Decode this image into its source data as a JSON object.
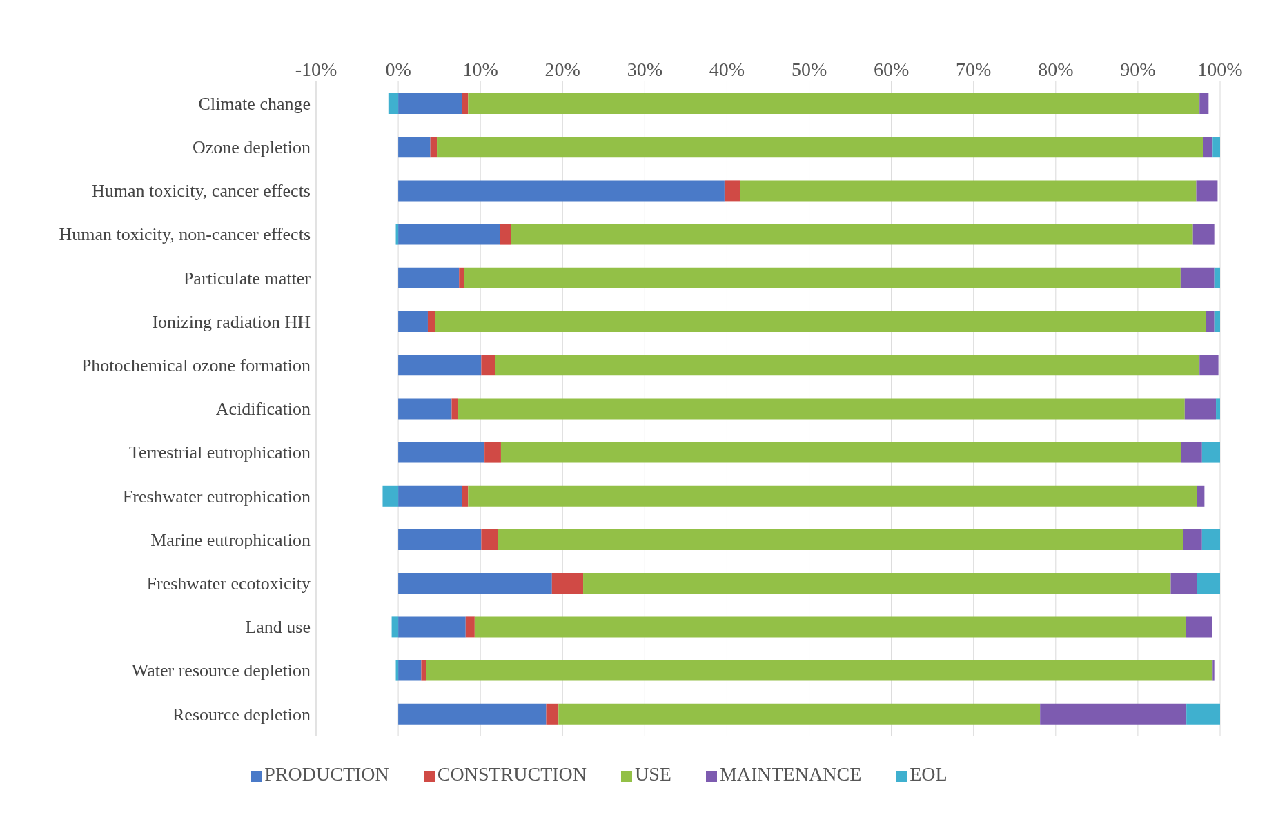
{
  "chart_data": {
    "type": "bar",
    "orientation": "horizontal",
    "stacked": true,
    "categories": [
      "Climate change",
      "Ozone depletion",
      "Human toxicity, cancer effects",
      "Human toxicity, non-cancer effects",
      "Particulate matter",
      "Ionizing radiation HH",
      "Photochemical ozone formation",
      "Acidification",
      "Terrestrial eutrophication",
      "Freshwater eutrophication",
      "Marine eutrophication",
      "Freshwater ecotoxicity",
      "Land use",
      "Water resource depletion",
      "Resource depletion"
    ],
    "series": [
      {
        "name": "PRODUCTION",
        "color": "#4a7ac8",
        "values": [
          7.8,
          3.9,
          39.7,
          12.4,
          7.4,
          3.6,
          10.1,
          6.5,
          10.5,
          7.8,
          10.1,
          18.7,
          8.2,
          2.8,
          18.0
        ]
      },
      {
        "name": "CONSTRUCTION",
        "color": "#d04a45",
        "values": [
          0.7,
          0.8,
          1.9,
          1.3,
          0.6,
          0.9,
          1.7,
          0.8,
          2.0,
          0.7,
          2.0,
          3.8,
          1.1,
          0.6,
          1.5
        ]
      },
      {
        "name": "USE",
        "color": "#93c047",
        "values": [
          89.0,
          93.2,
          55.5,
          83.0,
          87.2,
          93.8,
          85.7,
          88.4,
          82.8,
          88.7,
          83.4,
          71.5,
          86.5,
          95.7,
          58.6
        ]
      },
      {
        "name": "MAINTENANCE",
        "color": "#7d5bb0",
        "values": [
          1.1,
          1.2,
          2.6,
          2.6,
          4.1,
          1.0,
          2.3,
          3.8,
          2.5,
          0.9,
          2.3,
          3.2,
          3.2,
          0.2,
          17.8
        ]
      },
      {
        "name": "EOL",
        "color": "#3fb0cf",
        "values": [
          -1.2,
          0.9,
          null,
          -0.3,
          0.7,
          0.7,
          null,
          0.5,
          2.2,
          -1.9,
          2.2,
          2.8,
          -0.8,
          -0.3,
          4.1
        ]
      }
    ],
    "xlim": [
      -10,
      100
    ],
    "xticks": [
      {
        "value": -10,
        "label": "-10%"
      },
      {
        "value": 0,
        "label": "0%"
      },
      {
        "value": 10,
        "label": "10%"
      },
      {
        "value": 20,
        "label": "20%"
      },
      {
        "value": 30,
        "label": "30%"
      },
      {
        "value": 40,
        "label": "40%"
      },
      {
        "value": 50,
        "label": "50%"
      },
      {
        "value": 60,
        "label": "60%"
      },
      {
        "value": 70,
        "label": "70%"
      },
      {
        "value": 80,
        "label": "80%"
      },
      {
        "value": 90,
        "label": "90%"
      },
      {
        "value": 100,
        "label": "100%"
      }
    ],
    "grid": "x",
    "legend": "bottom"
  }
}
